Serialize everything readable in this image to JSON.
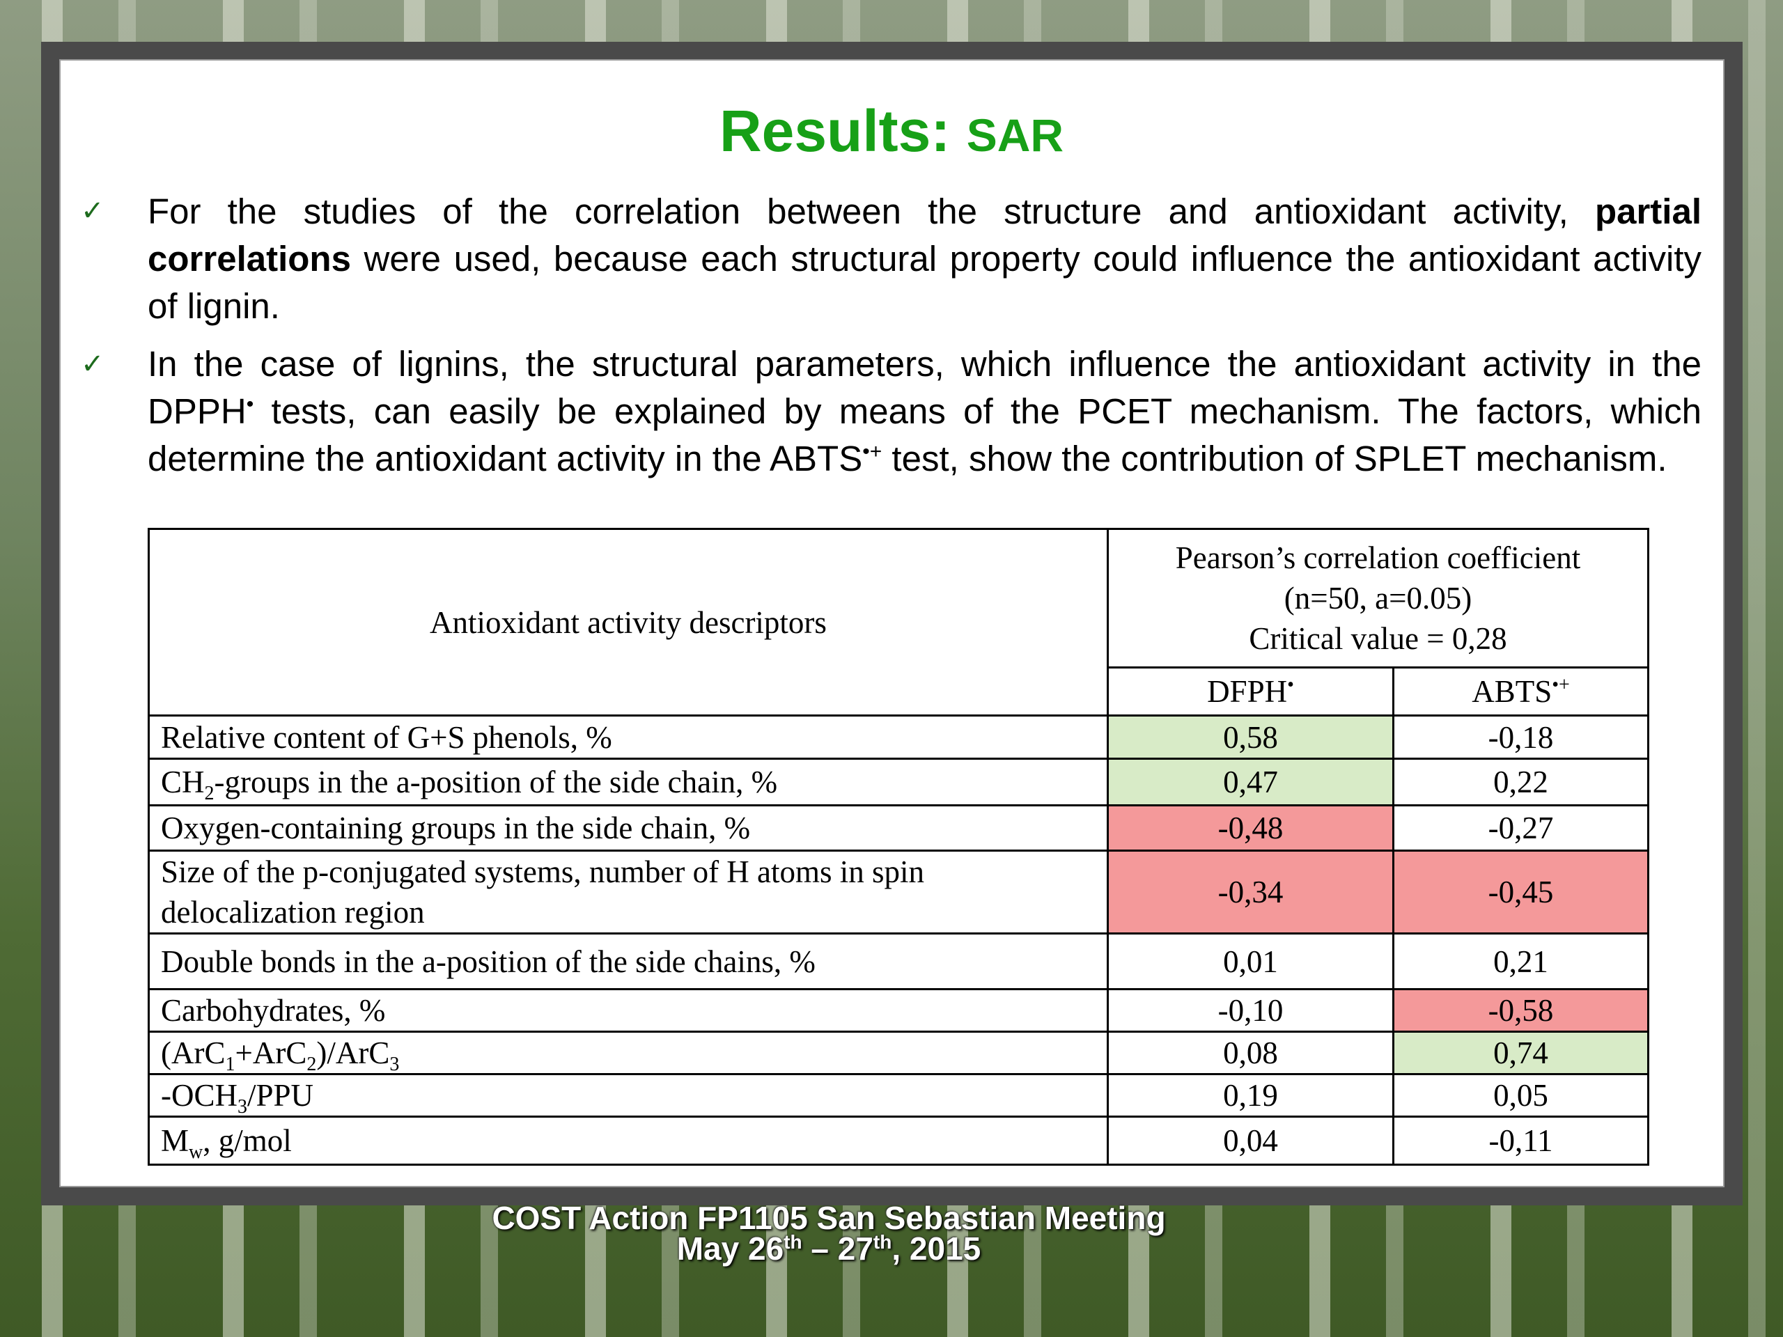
{
  "title": {
    "main": "Results:",
    "sub": "SAR"
  },
  "bullets": [
    [
      "For the studies of the correlation between the structure and antioxidant activity, ",
      "partial correlations",
      " were used, because each structural property could influence the antioxidant activity of lignin."
    ],
    [
      "In the case of lignins, the structural parameters, which influence the antioxidant activity in the DPPH",
      "•",
      " tests, can easily be explained by means of the PCET mechanism. The factors, which determine the antioxidant activity in the ABTS",
      "•+",
      " test, show the contribution of SPLET mechanism."
    ]
  ],
  "table": {
    "header": {
      "descriptor": "Antioxidant activity descriptors",
      "coefficient": [
        "Pearson’s correlation coefficient",
        "(n=50, a=0.05)",
        "Critical value = 0,28"
      ],
      "dpph": [
        "DFPH",
        "•"
      ],
      "abts": [
        "ABTS",
        "•+"
      ]
    },
    "rows": [
      {
        "descriptor": [
          "Relative content of G+S phenols, %"
        ],
        "dpph": "0,58",
        "abts": "-0,18"
      },
      {
        "descriptor": [
          "CH",
          "2",
          "-groups in the a-position of the side chain, %"
        ],
        "dpph": "0,47",
        "abts": "0,22"
      },
      {
        "descriptor": [
          "Oxygen-containing groups in the side chain, %"
        ],
        "dpph": "-0,48",
        "abts": "-0,27"
      },
      {
        "descriptor": [
          "Size of the p-conjugated systems, number of H atoms in spin delocalization region"
        ],
        "dpph": "-0,34",
        "abts": "-0,45"
      },
      {
        "descriptor": [
          "Double bonds in the a-position of the side chains, %"
        ],
        "dpph": "0,01",
        "abts": "0,21"
      },
      {
        "descriptor": [
          "Carbohydrates, %"
        ],
        "dpph": "-0,10",
        "abts": "-0,58"
      },
      {
        "descriptor": [
          "(ArC",
          "1",
          "+ArC",
          "2",
          ")/ArC",
          "3"
        ],
        "dpph": "0,08",
        "abts": "0,74"
      },
      {
        "descriptor": [
          "-OCH",
          "3",
          "/PPU"
        ],
        "dpph": "0,19",
        "abts": "0,05"
      },
      {
        "descriptor": [
          "M",
          "w",
          ", g/mol"
        ],
        "dpph": "0,04",
        "abts": "-0,11"
      }
    ]
  },
  "footer": {
    "line1": "COST Action FP1105 San Sebastian Meeting",
    "line2": [
      "May 26",
      "th",
      " – 27",
      "th",
      ", 2015"
    ]
  }
}
